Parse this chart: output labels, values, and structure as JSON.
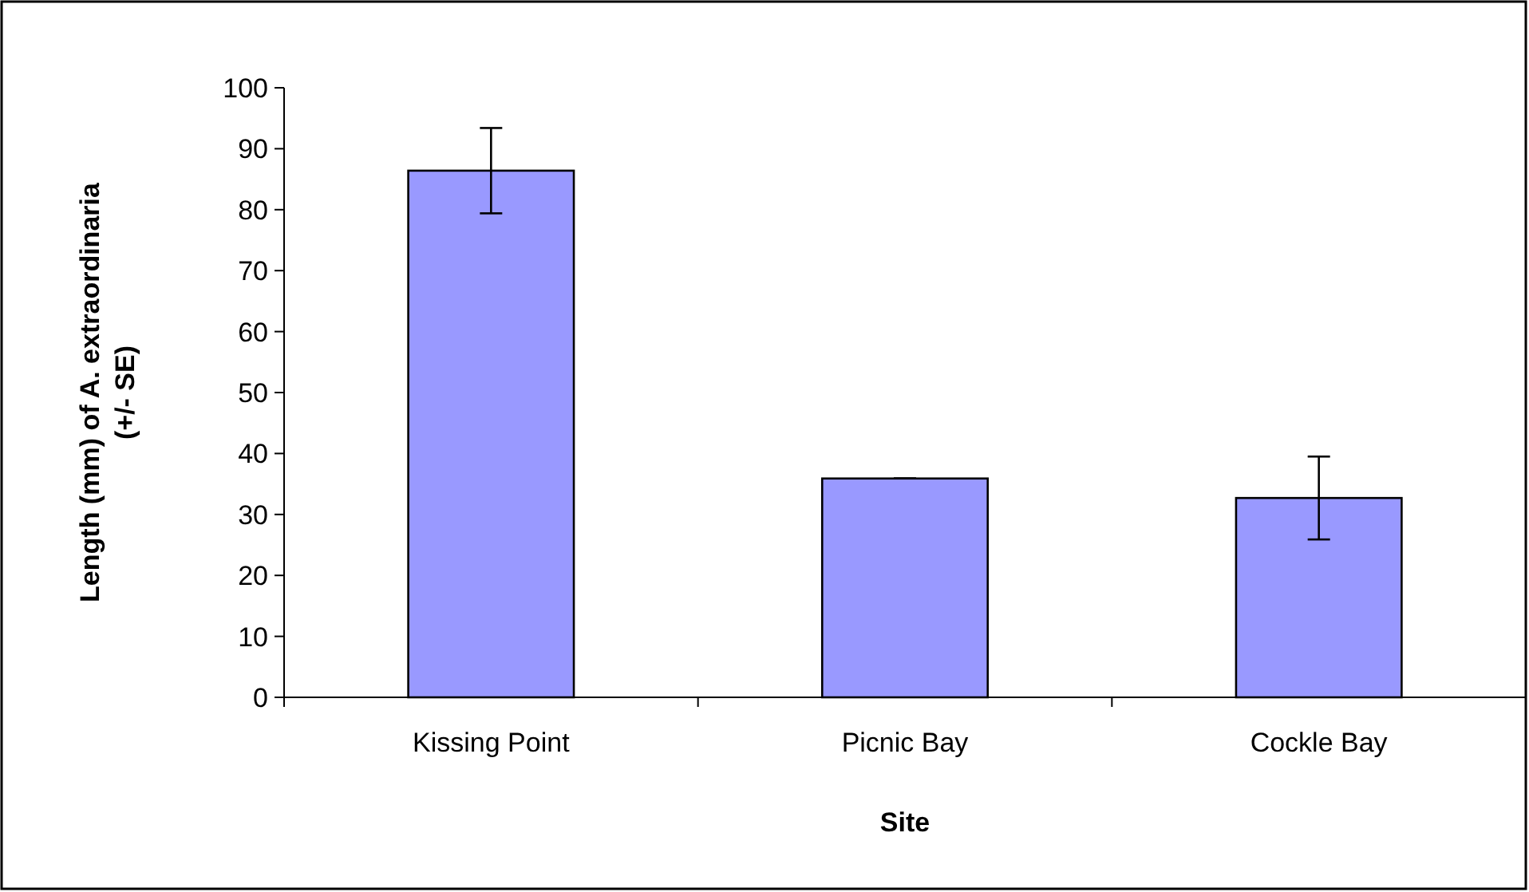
{
  "chart_data": {
    "type": "bar",
    "xlabel": "Site",
    "ylabel": "Length (mm) of A. extraordinaria (+/- SE)",
    "categories": [
      "Kissing Point",
      "Picnic Bay",
      "Cockle Bay"
    ],
    "values": [
      86.4,
      35.9,
      32.7
    ],
    "errors": [
      7,
      0,
      6.8
    ],
    "color": "#9999ff",
    "ylim": [
      0,
      100
    ],
    "yticks": [
      0,
      10,
      20,
      30,
      40,
      50,
      60,
      70,
      80,
      90,
      100
    ]
  }
}
